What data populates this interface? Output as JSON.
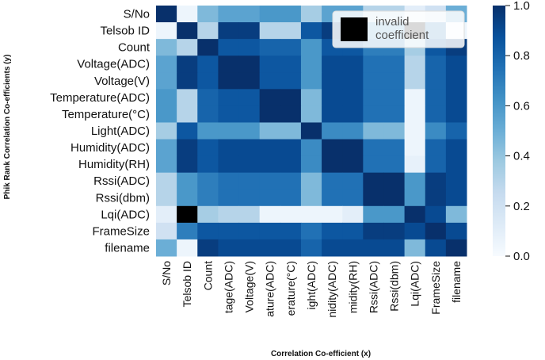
{
  "chart_data": {
    "type": "heatmap",
    "xlabel": "Correlation Co-efficient (x)",
    "ylabel": "Phik Rank Correlation Co-efficients (y)",
    "labels": [
      "S/No",
      "Telsob ID",
      "Count",
      "Voltage(ADC)",
      "Voltage(V)",
      "Temperature(ADC)",
      "Temperature(°C)",
      "Light(ADC)",
      "Humidity(ADC)",
      "Humidity(RH)",
      "Rssi(ADC)",
      "Rssi(dbm)",
      "Lqi(ADC)",
      "FrameSize",
      "filename"
    ],
    "x_tick_labels": [
      "S/No",
      "Telsob ID",
      "Count",
      "tage(ADC)",
      "Voltage(V)",
      "ature(ADC)",
      "erature(°C)",
      "ight(ADC)",
      "nidity(ADC)",
      "midity(RH)",
      "Rssi(ADC)",
      "Rssi(dbm)",
      "Lqi(ADC)",
      "FrameSize",
      "filename"
    ],
    "matrix": [
      [
        1.0,
        0.05,
        0.45,
        0.55,
        0.55,
        0.6,
        0.6,
        0.35,
        0.55,
        0.55,
        0.3,
        0.3,
        0.1,
        0.2,
        0.5
      ],
      [
        0.05,
        1.0,
        0.3,
        0.95,
        0.95,
        0.3,
        0.3,
        0.85,
        0.95,
        0.95,
        0.6,
        0.6,
        null,
        0.7,
        0.05
      ],
      [
        0.45,
        0.3,
        1.0,
        0.85,
        0.85,
        0.8,
        0.8,
        0.6,
        0.85,
        0.85,
        0.7,
        0.7,
        0.35,
        0.85,
        0.95
      ],
      [
        0.55,
        0.95,
        0.85,
        1.0,
        1.0,
        0.85,
        0.85,
        0.6,
        0.9,
        0.9,
        0.75,
        0.75,
        0.3,
        0.8,
        0.9
      ],
      [
        0.55,
        0.95,
        0.85,
        1.0,
        1.0,
        0.85,
        0.85,
        0.6,
        0.9,
        0.9,
        0.75,
        0.75,
        0.3,
        0.8,
        0.9
      ],
      [
        0.6,
        0.3,
        0.8,
        0.85,
        0.85,
        1.0,
        1.0,
        0.45,
        0.9,
        0.9,
        0.75,
        0.75,
        0.05,
        0.8,
        0.9
      ],
      [
        0.6,
        0.3,
        0.8,
        0.85,
        0.85,
        1.0,
        1.0,
        0.45,
        0.9,
        0.9,
        0.75,
        0.75,
        0.05,
        0.8,
        0.9
      ],
      [
        0.35,
        0.85,
        0.6,
        0.6,
        0.6,
        0.45,
        0.45,
        1.0,
        0.65,
        0.65,
        0.45,
        0.45,
        0.05,
        0.65,
        0.8
      ],
      [
        0.55,
        0.95,
        0.85,
        0.9,
        0.9,
        0.9,
        0.9,
        0.65,
        1.0,
        1.0,
        0.75,
        0.75,
        0.05,
        0.8,
        0.9
      ],
      [
        0.55,
        0.95,
        0.85,
        0.9,
        0.9,
        0.9,
        0.9,
        0.65,
        1.0,
        1.0,
        0.75,
        0.75,
        0.08,
        0.8,
        0.9
      ],
      [
        0.3,
        0.6,
        0.7,
        0.75,
        0.75,
        0.75,
        0.75,
        0.45,
        0.75,
        0.75,
        1.0,
        1.0,
        0.6,
        0.95,
        0.9
      ],
      [
        0.3,
        0.6,
        0.7,
        0.75,
        0.75,
        0.75,
        0.75,
        0.45,
        0.75,
        0.75,
        1.0,
        1.0,
        0.6,
        0.95,
        0.9
      ],
      [
        0.1,
        null,
        0.35,
        0.3,
        0.3,
        0.05,
        0.05,
        0.05,
        0.05,
        0.1,
        0.6,
        0.6,
        1.0,
        0.9,
        0.45
      ],
      [
        0.2,
        0.7,
        0.85,
        0.85,
        0.85,
        0.85,
        0.85,
        0.75,
        0.85,
        0.85,
        0.95,
        0.95,
        0.9,
        1.0,
        0.9
      ],
      [
        0.5,
        0.05,
        0.95,
        0.9,
        0.9,
        0.9,
        0.9,
        0.8,
        0.9,
        0.9,
        0.9,
        0.9,
        0.45,
        0.9,
        1.0
      ]
    ],
    "colorbar": {
      "min": 0.0,
      "max": 1.0,
      "ticks": [
        "0.0",
        "0.2",
        "0.4",
        "0.6",
        "0.8",
        "1.0"
      ]
    },
    "legend": {
      "entry": "invalid\ncoefficient",
      "line1": "invalid",
      "line2": "coefficient",
      "placement": "top-right"
    },
    "colors": {
      "invalid": "#000000",
      "low": "#f7fbff",
      "high": "#08306b"
    }
  }
}
